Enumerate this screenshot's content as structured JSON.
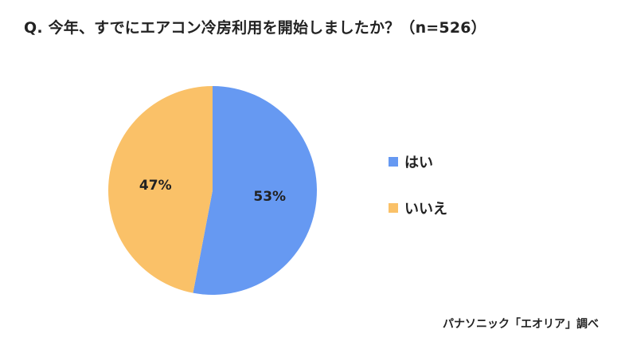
{
  "chart_data": {
    "type": "pie",
    "title": "Q. 今年、すでにエアコン冷房利用を開始しましたか？（n=526）",
    "categories": [
      "はい",
      "いいえ"
    ],
    "values": [
      53,
      47
    ],
    "labels": [
      "53%",
      "47%"
    ],
    "colors": [
      "#6699F2",
      "#FAC168"
    ],
    "legend_position": "right"
  },
  "source": "パナソニック「エオリア」調べ"
}
